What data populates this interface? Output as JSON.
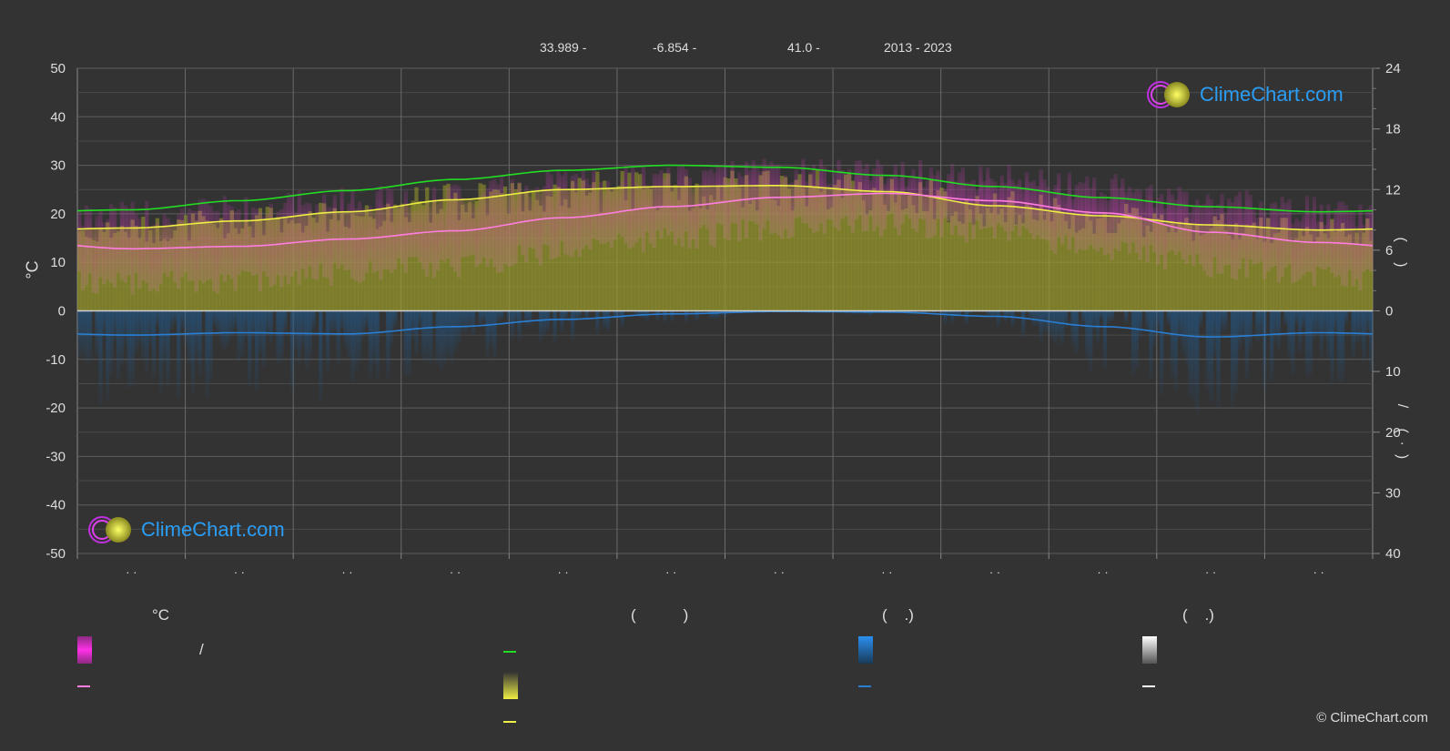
{
  "header": {
    "latitude": "33.989 -",
    "longitude": "-6.854 -",
    "elevation": "41.0 -",
    "years": "2013 - 2023"
  },
  "logo_text": "ClimeChart.com",
  "copyright": "© ClimeChart.com",
  "axes": {
    "left_unit": "°C",
    "left_ticks": [
      "50",
      "40",
      "30",
      "20",
      "10",
      "0",
      "-10",
      "-20",
      "-30",
      "-40",
      "-50"
    ],
    "right_top_ticks": [
      "24",
      "18",
      "12",
      "6",
      "0"
    ],
    "right_bottom_ticks": [
      "0",
      "10",
      "20",
      "30",
      "40"
    ],
    "right_top_label": "(     )",
    "right_bottom_label": "/     (  ·  )",
    "x_tick_label": "· ·"
  },
  "legend": {
    "col1_header": "°C",
    "col1_row1_text": "/",
    "col2_header": "(           )",
    "col3_header": "(    .)",
    "col4_header": "(    .)"
  },
  "colors": {
    "background": "#333333",
    "grid": "#666666",
    "daylight": "#22dd22",
    "sunshine": "#eeee44",
    "sunshine_fill": "#9a9a2c",
    "temp_mean": "#ff7de0",
    "temp_range": "#e040c8",
    "rain": "#2a7fd4",
    "rain_bars": "#1f4f7a"
  },
  "chart_data": {
    "type": "line",
    "x": [
      1,
      2,
      3,
      4,
      5,
      6,
      7,
      8,
      9,
      10,
      11,
      12
    ],
    "ylim": [
      -50,
      50
    ],
    "y2_top_lim": [
      0,
      24
    ],
    "y2_bottom_lim": [
      0,
      40
    ],
    "grid": true,
    "series": [
      {
        "key": "daylight",
        "axis": "hours",
        "values": [
          10.0,
          10.9,
          11.9,
          13.0,
          13.9,
          14.4,
          14.2,
          13.4,
          12.3,
          11.2,
          10.3,
          9.8
        ]
      },
      {
        "key": "sunshine",
        "axis": "hours",
        "values": [
          8.2,
          8.9,
          9.8,
          11.0,
          12.0,
          12.3,
          12.4,
          11.8,
          10.4,
          9.4,
          8.5,
          8.0
        ]
      },
      {
        "key": "temp_mean",
        "axis": "celsius",
        "values": [
          12.8,
          13.3,
          14.8,
          16.5,
          19.2,
          21.5,
          23.4,
          24.2,
          22.7,
          20.2,
          16.2,
          14.1
        ]
      },
      {
        "key": "temp_max",
        "axis": "celsius",
        "values": [
          18.5,
          19.8,
          21.5,
          22.8,
          25.2,
          26.4,
          27.3,
          27.4,
          26.0,
          24.4,
          21.2,
          19.5
        ]
      },
      {
        "key": "temp_min",
        "axis": "celsius",
        "values": [
          8.0,
          8.6,
          10.0,
          11.8,
          14.5,
          17.4,
          19.4,
          20.2,
          18.6,
          15.4,
          11.6,
          9.4
        ]
      },
      {
        "key": "rain",
        "axis": "mm",
        "values": [
          4.0,
          3.6,
          3.8,
          2.6,
          1.4,
          0.5,
          0.1,
          0.2,
          0.9,
          2.6,
          4.3,
          3.6
        ]
      }
    ]
  }
}
